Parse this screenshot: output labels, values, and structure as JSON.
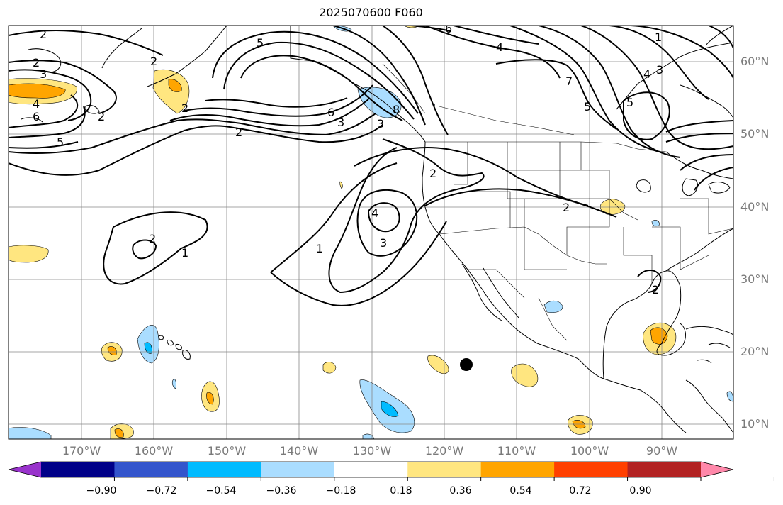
{
  "title": "2025070600 F060",
  "lat_labels": [
    "60°N",
    "50°N",
    "40°N",
    "30°N",
    "20°N",
    "10°N"
  ],
  "lon_labels": [
    "170°W",
    "160°W",
    "150°W",
    "140°W",
    "130°W",
    "120°W",
    "110°W",
    "100°W",
    "90°W"
  ],
  "colorbar": {
    "colors": [
      "#9933cc",
      "#000088",
      "#3355cc",
      "#00bbff",
      "#aaddff",
      "#ffffff",
      "#ffe680",
      "#ffa500",
      "#ff4000",
      "#b22222",
      "#ff88aa"
    ],
    "tick_labels": [
      "−0.90",
      "−0.72",
      "−0.54",
      "−0.36",
      "−0.18",
      "0.18",
      "0.36",
      "0.54",
      "0.72",
      "0.90"
    ]
  },
  "contour_labels": [
    "2",
    "2",
    "3",
    "4",
    "6",
    "2",
    "5",
    "2",
    "1",
    "2",
    "1",
    "6",
    "3",
    "2",
    "3",
    "4",
    "7",
    "4",
    "5",
    "6",
    "5",
    "3",
    "2",
    "2",
    "1",
    "5",
    "8",
    "4",
    "3",
    "2",
    "2"
  ],
  "marker": "storm-position-dot"
}
